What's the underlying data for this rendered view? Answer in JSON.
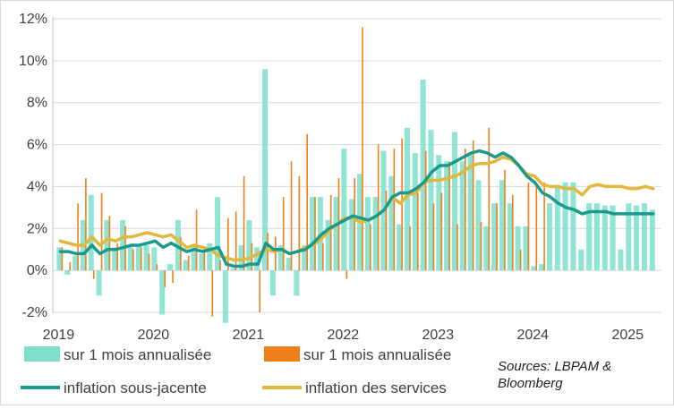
{
  "chart_data": {
    "type": "bar",
    "title": "",
    "xlabel": "",
    "ylabel": "",
    "ylim": [
      -2,
      12
    ],
    "y_ticks": [
      "-2%",
      "0%",
      "2%",
      "4%",
      "6%",
      "8%",
      "10%",
      "12%"
    ],
    "x_ticks": [
      "2019",
      "2020",
      "2021",
      "2022",
      "2023",
      "2024",
      "2025"
    ],
    "grid": "horizontal",
    "legend_position": "bottom",
    "start_month": "2019-01",
    "series": [
      {
        "name": "sur 1 mois annualisée",
        "kind": "bar",
        "color": "#7ddfcb",
        "values": [
          1.1,
          -0.2,
          0.7,
          2.4,
          3.6,
          -1.2,
          2.4,
          1.1,
          2.4,
          1.1,
          1.2,
          1.2,
          1.1,
          -2.1,
          0.3,
          2.4,
          0.5,
          1.2,
          0.8,
          1.3,
          3.5,
          -2.5,
          0.1,
          1.2,
          2.4,
          1.1,
          9.6,
          -1.2,
          1.2,
          0.6,
          -1.2,
          1.2,
          3.5,
          3.5,
          2.4,
          3.5,
          5.8,
          3.4,
          4.6,
          3.5,
          3.5,
          5.7,
          4.5,
          2.2,
          6.8,
          5.6,
          9.1,
          6.7,
          5.5,
          5.2,
          6.6,
          5.2,
          5.5,
          4.3,
          2.1,
          3.2,
          4.3,
          3.2,
          2.1,
          2.1,
          0.2,
          0.3,
          3.2,
          4.0,
          4.2,
          4.2,
          1.0,
          3.2,
          3.2,
          3.1,
          3.1,
          1.0,
          3.2,
          3.1,
          3.2,
          2.9
        ]
      },
      {
        "name": "sur 1 mois annualisée",
        "kind": "bar",
        "color": "#f07f1a",
        "values": [
          1.1,
          0.4,
          3.2,
          4.4,
          -0.4,
          3.7,
          2.6,
          1.3,
          2.1,
          1.0,
          1.1,
          0.8,
          0.3,
          -0.8,
          -0.6,
          1.6,
          0.7,
          2.9,
          1.0,
          -2.2,
          0.5,
          2.5,
          2.8,
          4.5,
          1.3,
          -2.0,
          1.8,
          1.6,
          3.5,
          5.2,
          4.5,
          6.5,
          3.5,
          1.3,
          3.6,
          4.4,
          -0.4,
          4.4,
          11.6,
          2.2,
          6.0,
          3.8,
          5.8,
          6.3,
          2.1,
          3.7,
          5.7,
          3.2,
          3.7,
          5.2,
          2.2,
          5.8,
          6.2,
          2.3,
          6.8,
          3.2,
          4.8,
          3.6,
          1.0,
          4.2,
          4.0,
          4.2
        ]
      },
      {
        "name": "inflation sous-jacente",
        "kind": "line",
        "color": "#1a9a8c",
        "values": [
          0.9,
          0.9,
          0.8,
          0.8,
          1.2,
          0.8,
          1.0,
          1.0,
          1.1,
          1.2,
          1.2,
          1.3,
          1.4,
          1.1,
          1.3,
          1.1,
          0.9,
          1.0,
          0.9,
          1.0,
          1.1,
          0.3,
          0.2,
          0.2,
          0.3,
          0.3,
          1.3,
          1.0,
          1.0,
          0.8,
          0.9,
          1.0,
          1.3,
          1.7,
          2.0,
          2.2,
          2.4,
          2.6,
          2.5,
          2.4,
          2.6,
          2.9,
          3.5,
          3.7,
          3.7,
          3.9,
          4.2,
          4.7,
          5.0,
          5.0,
          5.2,
          5.4,
          5.6,
          5.7,
          5.6,
          5.4,
          5.6,
          5.4,
          5.0,
          4.5,
          4.2,
          3.7,
          3.5,
          3.2,
          3.0,
          2.9,
          2.7,
          2.8,
          2.8,
          2.8,
          2.7,
          2.7,
          2.7,
          2.7,
          2.7,
          2.7
        ]
      },
      {
        "name": "inflation des services",
        "kind": "line",
        "color": "#e0b83e",
        "values": [
          1.4,
          1.3,
          1.2,
          1.2,
          1.6,
          1.2,
          1.5,
          1.4,
          1.6,
          1.6,
          1.7,
          1.8,
          1.7,
          1.6,
          1.7,
          1.4,
          1.1,
          1.2,
          1.1,
          1.0,
          0.7,
          0.6,
          0.5,
          0.5,
          0.6,
          0.8,
          1.0,
          0.9,
          1.0,
          0.8,
          0.9,
          1.1,
          1.2,
          1.5,
          1.9,
          2.2,
          2.5,
          2.5,
          2.3,
          2.4,
          2.6,
          2.9,
          3.5,
          3.2,
          3.6,
          3.7,
          4.2,
          4.3,
          4.3,
          4.4,
          4.5,
          4.7,
          5.0,
          5.1,
          5.1,
          5.2,
          5.4,
          5.3,
          5.0,
          4.6,
          4.5,
          4.1,
          4.0,
          4.0,
          3.9,
          3.9,
          3.6,
          4.0,
          4.1,
          4.0,
          4.0,
          4.0,
          3.9,
          3.9,
          4.0,
          3.9
        ]
      }
    ]
  },
  "legend": {
    "items": [
      {
        "label": "sur 1 mois annualisée",
        "color": "#7ddfcb",
        "swatch": "box"
      },
      {
        "label": "sur 1 mois annualisée",
        "color": "#f07f1a",
        "swatch": "box"
      },
      {
        "label": "inflation sous-jacente",
        "color": "#1a9a8c",
        "swatch": "line"
      },
      {
        "label": "inflation des services",
        "color": "#e0b83e",
        "swatch": "line"
      }
    ]
  },
  "source": {
    "line1": "Sources: LBPAM &",
    "line2": "Bloomberg"
  }
}
